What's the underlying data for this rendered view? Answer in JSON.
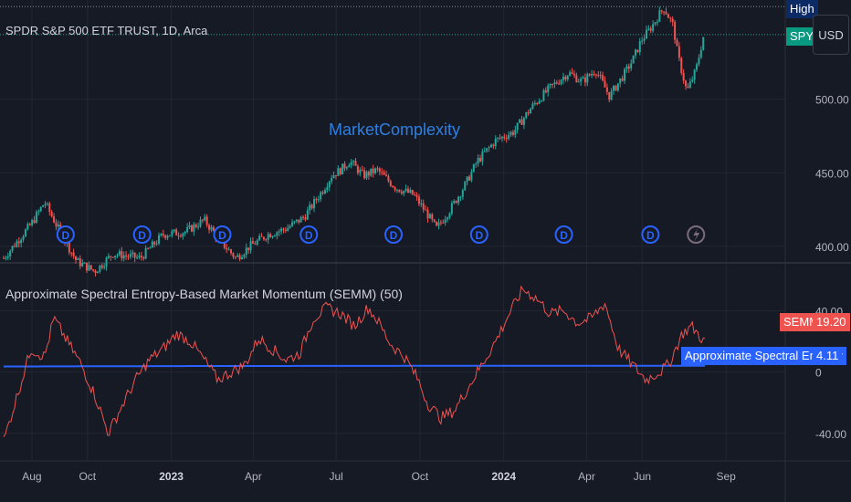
{
  "colors": {
    "background": "#161a25",
    "grid": "#232734",
    "text": "#b2b5be",
    "up": "#26a69a",
    "down": "#ef5350",
    "semm_line": "#ef5350",
    "entropy_line": "#2962ff",
    "event_icon": "#2962ff",
    "flash_icon": "#7a6a7a",
    "watermark": "#2f7fe0",
    "high_tag": "#0c2b66",
    "spy_tag": "#089981",
    "semm_tag": "#ef5350",
    "entropy_tag": "#2962ff"
  },
  "header": {
    "symbol_title": "SPDR S&P 500 ETF TRUST, 1D, Arca",
    "watermark": "MarketComplexity",
    "currency_button": "USD"
  },
  "price_tags": {
    "high_label": "High",
    "symbol_label": "SPY"
  },
  "indicator": {
    "title": "Approximate Spectral Entropy-Based Market Momentum (SEMM) (50)",
    "semm_label": "SEMM",
    "semm_value": "19.20",
    "entropy_label": "Approximate Spectral Entropy",
    "entropy_value": "4.11"
  },
  "chart_data": [
    {
      "type": "candlestick",
      "name": "price",
      "y_ticks": [
        "400.00",
        "450.00",
        "500.00"
      ],
      "y_tick_values": [
        400,
        450,
        500
      ],
      "ylim": [
        390,
        565
      ],
      "x_tick_labels": [
        "Aug",
        "Oct",
        "2023",
        "Apr",
        "Jul",
        "Oct",
        "2024",
        "Apr",
        "Jun",
        "Sep"
      ],
      "x_tick_days": [
        31,
        92,
        184,
        274,
        365,
        457,
        549,
        640,
        701,
        793
      ],
      "xlim": [
        0,
        860
      ],
      "series": [
        {
          "days": [
            0,
            30,
            45,
            60,
            80,
            100,
            120,
            150,
            175,
            200,
            220,
            240,
            255,
            270,
            290,
            310,
            330,
            350,
            360,
            370,
            380,
            395,
            410,
            430,
            450,
            465,
            475,
            490,
            505,
            520,
            540,
            560,
            580,
            600,
            620,
            635,
            650,
            665,
            680,
            690,
            700,
            712,
            720,
            725,
            735,
            740,
            750,
            760,
            770
          ],
          "closes": [
            392,
            415,
            430,
            412,
            390,
            383,
            395,
            392,
            408,
            410,
            418,
            402,
            392,
            400,
            408,
            412,
            420,
            438,
            448,
            452,
            458,
            448,
            452,
            440,
            435,
            422,
            412,
            425,
            440,
            458,
            472,
            478,
            495,
            508,
            518,
            512,
            520,
            502,
            516,
            526,
            540,
            550,
            558,
            562,
            550,
            530,
            505,
            520,
            548
          ]
        }
      ],
      "high_line": 563,
      "last_price": 544
    },
    {
      "type": "line",
      "name": "SEMM",
      "y_ticks": [
        "40.00",
        "0",
        "-40.00"
      ],
      "y_tick_values": [
        40,
        0,
        -40
      ],
      "ylim": [
        -55,
        70
      ],
      "series": [
        {
          "name": "SEMM",
          "days": [
            0,
            10,
            20,
            30,
            45,
            55,
            65,
            75,
            85,
            100,
            115,
            130,
            145,
            160,
            175,
            190,
            205,
            220,
            235,
            250,
            265,
            280,
            295,
            310,
            325,
            340,
            355,
            370,
            385,
            400,
            410,
            425,
            440,
            455,
            465,
            480,
            495,
            510,
            525,
            540,
            555,
            570,
            585,
            600,
            615,
            630,
            645,
            660,
            675,
            690,
            705,
            720,
            730,
            745,
            755,
            770
          ],
          "values": [
            -45,
            -25,
            -5,
            15,
            10,
            35,
            25,
            15,
            5,
            -15,
            -40,
            -22,
            -5,
            8,
            15,
            25,
            20,
            8,
            -5,
            0,
            5,
            22,
            15,
            8,
            12,
            35,
            42,
            38,
            30,
            42,
            34,
            18,
            10,
            -5,
            -20,
            -30,
            -25,
            -10,
            5,
            20,
            38,
            54,
            48,
            38,
            40,
            32,
            35,
            45,
            15,
            5,
            -5,
            0,
            5,
            25,
            30,
            19.2
          ]
        },
        {
          "name": "Approximate Spectral Entropy",
          "days": [
            0,
            200,
            400,
            600,
            770
          ],
          "values": [
            3.6,
            3.9,
            4.0,
            4.1,
            4.11
          ]
        }
      ]
    }
  ]
}
